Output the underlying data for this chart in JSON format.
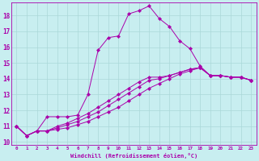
{
  "xlabel": "Windchill (Refroidissement éolien,°C)",
  "xlim": [
    -0.5,
    23.5
  ],
  "ylim": [
    9.8,
    18.8
  ],
  "xticks": [
    0,
    1,
    2,
    3,
    4,
    5,
    6,
    7,
    8,
    9,
    10,
    11,
    12,
    13,
    14,
    15,
    16,
    17,
    18,
    19,
    20,
    21,
    22,
    23
  ],
  "yticks": [
    10,
    11,
    12,
    13,
    14,
    15,
    16,
    17,
    18
  ],
  "bg_color": "#c8eef0",
  "line_color": "#aa00aa",
  "grid_color": "#aad8d8",
  "lines": [
    {
      "x": [
        0,
        1,
        2,
        3,
        4,
        5,
        6,
        7,
        8,
        9,
        10,
        11,
        12,
        13,
        14,
        15,
        16,
        17,
        18,
        19,
        20,
        21,
        22,
        23
      ],
      "y": [
        11.0,
        10.4,
        10.7,
        11.6,
        11.6,
        11.6,
        11.7,
        13.0,
        15.8,
        16.6,
        16.7,
        18.1,
        18.3,
        18.6,
        17.8,
        17.3,
        16.4,
        15.9,
        14.8,
        14.2,
        14.2,
        14.1,
        14.1,
        13.9
      ],
      "marker": "D",
      "markersize": 2.2
    },
    {
      "x": [
        0,
        1,
        2,
        3,
        4,
        5,
        6,
        7,
        8,
        9,
        10,
        11,
        12,
        13,
        14,
        15,
        16,
        17,
        18,
        19,
        20,
        21,
        22,
        23
      ],
      "y": [
        11.0,
        10.4,
        10.7,
        10.7,
        10.8,
        10.9,
        11.1,
        11.3,
        11.6,
        11.9,
        12.2,
        12.6,
        13.0,
        13.4,
        13.7,
        14.0,
        14.3,
        14.5,
        14.7,
        14.2,
        14.2,
        14.1,
        14.1,
        13.9
      ],
      "marker": "D",
      "markersize": 2.2
    },
    {
      "x": [
        0,
        1,
        2,
        3,
        4,
        5,
        6,
        7,
        8,
        9,
        10,
        11,
        12,
        13,
        14,
        15,
        16,
        17,
        18,
        19,
        20,
        21,
        22,
        23
      ],
      "y": [
        11.0,
        10.4,
        10.7,
        10.7,
        10.9,
        11.1,
        11.3,
        11.6,
        11.9,
        12.3,
        12.7,
        13.1,
        13.5,
        13.9,
        14.0,
        14.2,
        14.4,
        14.6,
        14.7,
        14.2,
        14.2,
        14.1,
        14.1,
        13.9
      ],
      "marker": "D",
      "markersize": 2.2
    },
    {
      "x": [
        0,
        1,
        2,
        3,
        4,
        5,
        6,
        7,
        8,
        9,
        10,
        11,
        12,
        13,
        14,
        15,
        16,
        17,
        18,
        19,
        20,
        21,
        22,
        23
      ],
      "y": [
        11.0,
        10.4,
        10.7,
        10.7,
        11.0,
        11.2,
        11.5,
        11.8,
        12.2,
        12.6,
        13.0,
        13.4,
        13.8,
        14.1,
        14.1,
        14.2,
        14.4,
        14.6,
        14.7,
        14.2,
        14.2,
        14.1,
        14.1,
        13.9
      ],
      "marker": "D",
      "markersize": 2.2
    }
  ]
}
